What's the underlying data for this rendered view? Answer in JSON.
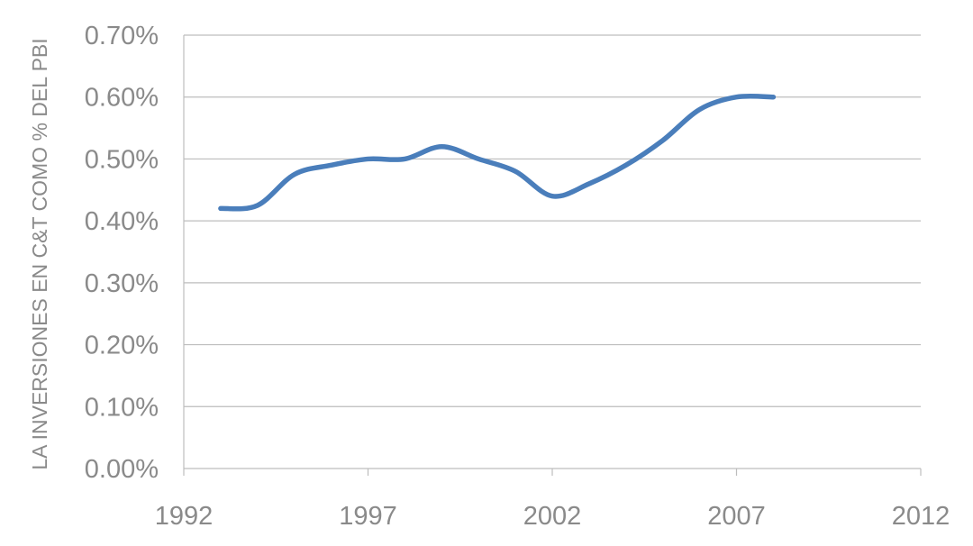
{
  "chart_data": {
    "type": "line",
    "title": "",
    "xlabel": "",
    "ylabel": "LA INVERSIONES EN C&T COMO % DEL PBI",
    "xlim": [
      1992,
      2012
    ],
    "ylim": [
      0,
      0.007
    ],
    "x_ticks": [
      1992,
      1997,
      2002,
      2007,
      2012
    ],
    "x_tick_labels": [
      "1992",
      "1997",
      "2002",
      "2007",
      "2012"
    ],
    "y_ticks": [
      0,
      0.001,
      0.002,
      0.003,
      0.004,
      0.005,
      0.006,
      0.007
    ],
    "y_tick_labels": [
      "0.00%",
      "0.10%",
      "0.20%",
      "0.30%",
      "0.40%",
      "0.50%",
      "0.60%",
      "0.70%"
    ],
    "grid": "horizontal",
    "legend": "none",
    "line_color": "#4a7ebb",
    "series": [
      {
        "x": [
          1993,
          1994,
          1995,
          1996,
          1997,
          1998,
          1999,
          2000,
          2001,
          2002,
          2003,
          2004,
          2005,
          2006,
          2007,
          2008
        ],
        "values": [
          0.0042,
          0.00425,
          0.00475,
          0.0049,
          0.005,
          0.005,
          0.0052,
          0.005,
          0.0048,
          0.0044,
          0.0046,
          0.0049,
          0.0053,
          0.0058,
          0.006,
          0.006
        ]
      }
    ]
  }
}
